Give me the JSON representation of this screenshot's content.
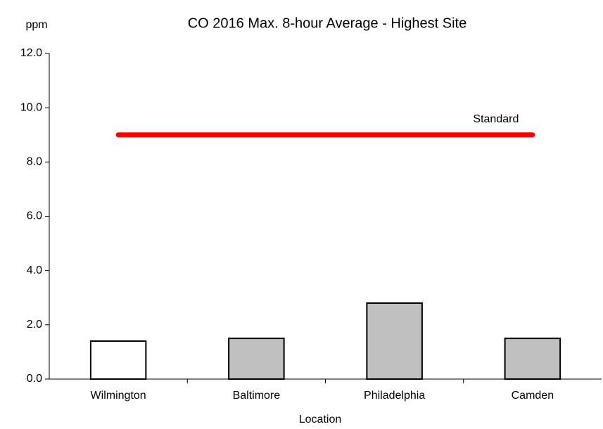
{
  "chart_data": {
    "type": "bar",
    "title": "CO 2016 Max. 8-hour Average - Highest Site",
    "y_label": "ppm",
    "x_label": "Location",
    "categories": [
      "Wilmington",
      "Baltimore",
      "Philadelphia",
      "Camden"
    ],
    "values": [
      1.4,
      1.5,
      2.8,
      1.5
    ],
    "colors": [
      "#ffffff",
      "#c0c0c0",
      "#c0c0c0",
      "#c0c0c0"
    ],
    "ylim": [
      0,
      12
    ],
    "yticks": [
      {
        "value": 0,
        "label": "0.0"
      },
      {
        "value": 2,
        "label": "2.0"
      },
      {
        "value": 4,
        "label": "4.0"
      },
      {
        "value": 6,
        "label": "6.0"
      },
      {
        "value": 8,
        "label": "8.0"
      },
      {
        "value": 10,
        "label": "10.0"
      },
      {
        "value": 12,
        "label": "12.0"
      }
    ],
    "reference_line": {
      "value": 9,
      "label": "Standard",
      "color": "#ff0000"
    }
  }
}
